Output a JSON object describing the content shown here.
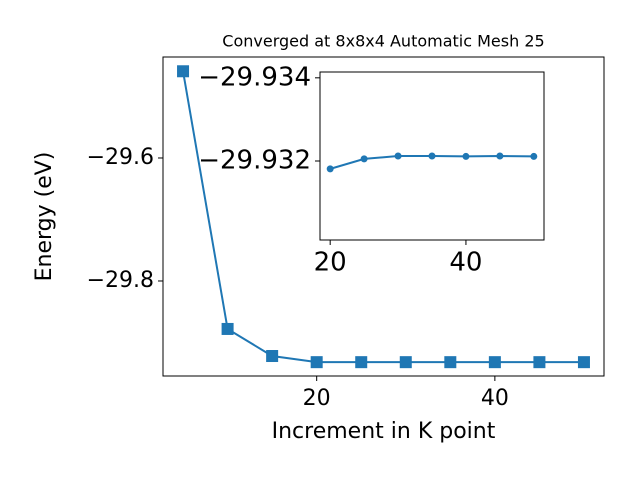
{
  "chart_data": [
    {
      "type": "line",
      "title": "Converged at 8x8x4 Automatic Mesh 25",
      "xlabel": "Increment in K point",
      "ylabel": "Energy (eV)",
      "x": [
        5,
        10,
        15,
        20,
        25,
        30,
        35,
        40,
        45,
        50
      ],
      "series": [
        {
          "color": "#1f77b4",
          "marker": "square",
          "values": [
            -29.459,
            -29.878,
            -29.922,
            -29.932,
            -29.932,
            -29.932,
            -29.932,
            -29.932,
            -29.932,
            -29.932
          ]
        }
      ],
      "xlim": [
        2.75,
        52.25
      ],
      "ylim": [
        -29.9545,
        -29.4358
      ],
      "xticks": [
        20,
        40
      ],
      "yticks": [
        {
          "value": -29.6,
          "label": "−29.6"
        },
        {
          "value": -29.8,
          "label": "−29.8"
        }
      ]
    },
    {
      "type": "line",
      "x": [
        20,
        25,
        30,
        35,
        40,
        45,
        50
      ],
      "series": [
        {
          "color": "#1f77b4",
          "marker": "circle",
          "values": [
            -29.93181,
            -29.93205,
            -29.93212,
            -29.93212,
            -29.93211,
            -29.93212,
            -29.93211
          ]
        }
      ],
      "xlim": [
        18.5,
        51.5
      ],
      "ylim": [
        -29.9301,
        -29.93414
      ],
      "xticks": [
        20,
        40
      ],
      "yticks": [
        {
          "value": -29.934,
          "label": "−29.934"
        },
        {
          "value": -29.932,
          "label": "−29.932"
        }
      ]
    }
  ]
}
